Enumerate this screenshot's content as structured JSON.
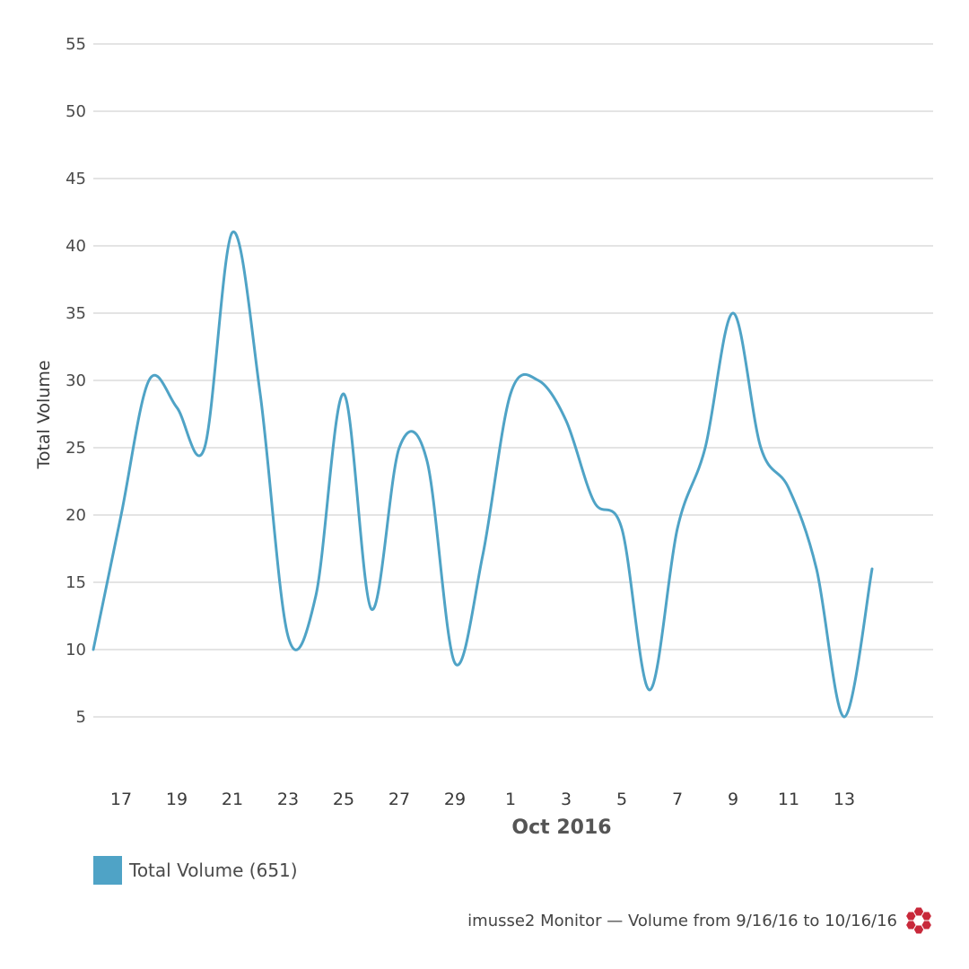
{
  "chart_data": {
    "type": "line",
    "ylabel": "Total Volume",
    "ylim": [
      0,
      55
    ],
    "yticks": [
      5,
      10,
      15,
      20,
      25,
      30,
      35,
      40,
      45,
      50,
      55
    ],
    "grid": true,
    "x_dates": [
      "2016-09-16",
      "2016-09-17",
      "2016-09-18",
      "2016-09-19",
      "2016-09-20",
      "2016-09-21",
      "2016-09-22",
      "2016-09-23",
      "2016-09-24",
      "2016-09-25",
      "2016-09-26",
      "2016-09-27",
      "2016-09-28",
      "2016-09-29",
      "2016-09-30",
      "2016-10-01",
      "2016-10-02",
      "2016-10-03",
      "2016-10-04",
      "2016-10-05",
      "2016-10-06",
      "2016-10-07",
      "2016-10-08",
      "2016-10-09",
      "2016-10-10",
      "2016-10-11",
      "2016-10-12",
      "2016-10-13",
      "2016-10-14",
      "2016-10-15",
      "2016-10-16"
    ],
    "x_tick_labels": [
      "17",
      "19",
      "21",
      "23",
      "25",
      "27",
      "29",
      "1",
      "3",
      "5",
      "7",
      "9",
      "11",
      "13"
    ],
    "x_tick_dates": [
      "2016-09-17",
      "2016-09-19",
      "2016-09-21",
      "2016-09-23",
      "2016-09-25",
      "2016-09-27",
      "2016-09-29",
      "2016-10-01",
      "2016-10-03",
      "2016-10-05",
      "2016-10-07",
      "2016-10-09",
      "2016-10-11",
      "2016-10-13"
    ],
    "month_label": "Oct 2016",
    "month_label_date": "2016-10-03",
    "series": [
      {
        "name": "Total Volume (651)",
        "color": "#4fa3c6",
        "values": [
          10,
          20,
          30,
          28,
          25,
          41,
          29,
          11,
          14,
          29,
          13,
          25,
          24,
          9,
          17,
          29,
          30,
          27,
          21,
          19,
          7,
          19,
          25,
          35,
          25,
          22,
          16,
          5,
          16,
          null,
          null
        ]
      }
    ],
    "legend_position": "bottom-left"
  },
  "legend": {
    "label": "Total Volume (651)",
    "color": "#4fa3c6"
  },
  "footer": {
    "text": "imusse2 Monitor — Volume from 9/16/16 to 10/16/16",
    "logo_icon": "hexagon-cluster-logo-icon",
    "logo_color": "#c8283a"
  }
}
